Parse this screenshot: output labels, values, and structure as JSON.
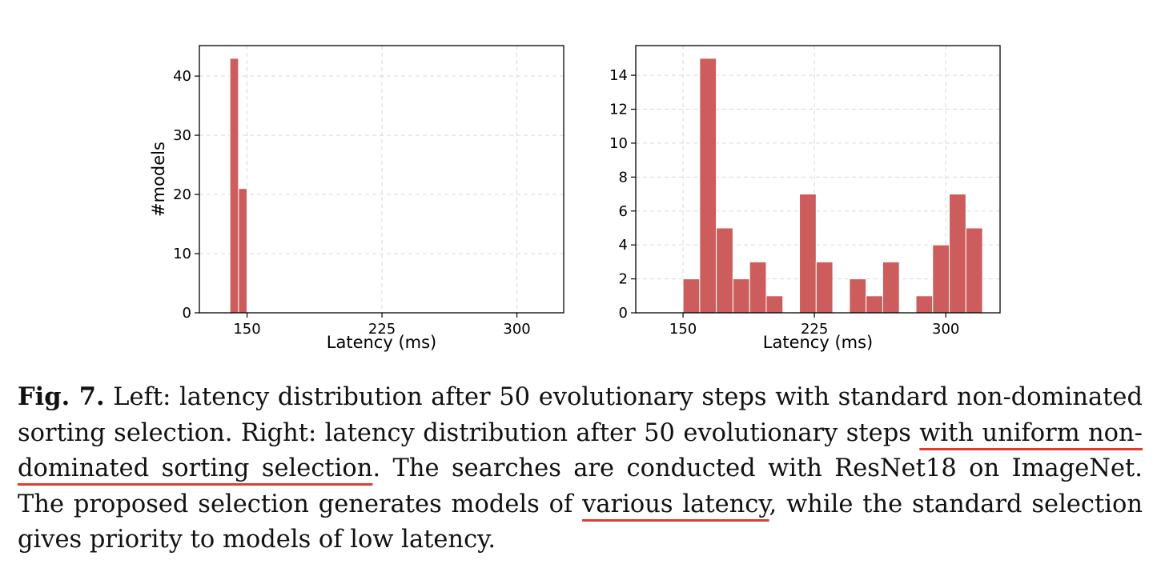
{
  "chart_data": [
    {
      "type": "bar",
      "panel": "Left",
      "xlabel": "Latency (ms)",
      "ylabel": "#models",
      "bin_width": 4.75,
      "bin_starts": [
        140.5,
        145.25
      ],
      "values": [
        43,
        21
      ],
      "xlim": [
        123.5,
        326
      ],
      "ylim": [
        0,
        45.15
      ],
      "xticks": [
        150,
        225,
        300
      ],
      "yticks": [
        0,
        10,
        20,
        30,
        40
      ],
      "bar_color": "#cd5c5c",
      "grid": true
    },
    {
      "type": "bar",
      "panel": "Right",
      "xlabel": "Latency (ms)",
      "ylabel": "",
      "bin_width": 9.5,
      "bin_starts": [
        150,
        159.5,
        169,
        178.5,
        188,
        197.5,
        207,
        216.5,
        226,
        235.5,
        245,
        254.5,
        264,
        273.5,
        283,
        292.5,
        302,
        311.5
      ],
      "values": [
        2,
        15,
        5,
        2,
        3,
        1,
        0,
        7,
        3,
        0,
        2,
        1,
        3,
        0,
        1,
        4,
        7,
        5
      ],
      "xlim": [
        123,
        331
      ],
      "ylim": [
        0,
        15.75
      ],
      "xticks": [
        150,
        225,
        300
      ],
      "yticks": [
        0,
        2,
        4,
        6,
        8,
        10,
        12,
        14
      ],
      "bar_color": "#cd5c5c",
      "grid": true
    }
  ],
  "caption": {
    "label": "Fig. 7.",
    "part1": " Left: latency distribution after 50 evolutionary steps with standard non-dominated sorting selection. Right: latency distribution after 50 evolutionary steps ",
    "highlight1": "with uniform non-dominated sorting selection",
    "part2": ". The searches are conducted with ResNet18 on ImageNet. The proposed selection generates models of ",
    "highlight2": "various latency",
    "part3": ", while the standard selection gives priority to models of low latency."
  }
}
